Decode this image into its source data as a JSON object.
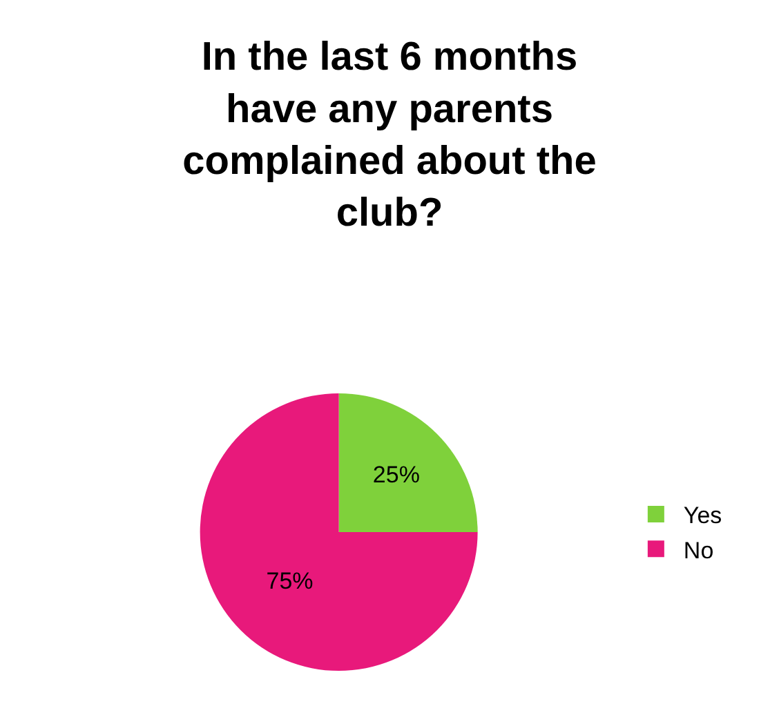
{
  "chart_data": {
    "type": "pie",
    "title": "In the last 6 months have any parents complained about the club?",
    "categories": [
      "Yes",
      "No"
    ],
    "values": [
      25,
      75
    ],
    "colors": [
      "#7fd13b",
      "#e8197b"
    ],
    "value_labels": [
      "25%",
      "75%"
    ],
    "legend": "right"
  }
}
